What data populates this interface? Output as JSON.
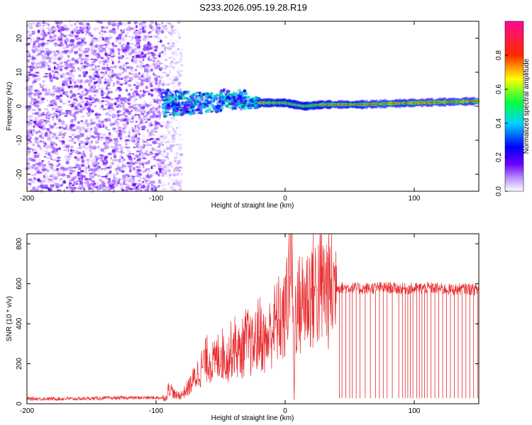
{
  "title": "S233.2026.095.19.28.R19",
  "colors": {
    "snr_line": "#e8292b",
    "scatter_primary": "#7a1fff",
    "axis": "#000000"
  },
  "chart_data": [
    {
      "type": "heatmap",
      "name": "spectrogram",
      "xlabel": "Height of straight line (km)",
      "ylabel": "Frequency (Hz)",
      "xlim": [
        -200,
        150
      ],
      "ylim": [
        -25,
        25
      ],
      "x_ticks": [
        -200,
        -100,
        0,
        100
      ],
      "y_ticks": [
        -20,
        -10,
        0,
        10,
        20
      ],
      "colorbar": {
        "label": "Normalized spectral amplitude",
        "range": [
          0.0,
          1.0
        ],
        "ticks": [
          0.0,
          0.2,
          0.4,
          0.6,
          0.8
        ],
        "tick_labels": [
          "0.0",
          "0.2",
          "0.4",
          "0.6",
          "0.8"
        ],
        "colormap": [
          "#ffffff",
          "#6a00ff",
          "#0000ff",
          "#00d4ff",
          "#00ff00",
          "#ffff00",
          "#ff0000",
          "#ff00a0"
        ]
      },
      "regions": [
        {
          "x_range": [
            -200,
            -95
          ],
          "freq_range": [
            -25,
            25
          ],
          "description": "noise",
          "amplitude": 0.1
        },
        {
          "x_range": [
            -95,
            -80
          ],
          "freq_range": [
            -25,
            25
          ],
          "description": "sparse noise",
          "amplitude": 0.05
        },
        {
          "x_range": [
            -95,
            -20
          ],
          "freq_range": [
            -4,
            6
          ],
          "description": "signal onset",
          "amplitude": 0.35
        },
        {
          "x_range": [
            -20,
            150
          ],
          "freq_range": [
            -1,
            2
          ],
          "description": "carrier line",
          "amplitude": 0.7
        }
      ],
      "carrier_line": {
        "x": [
          -20,
          0,
          15,
          30,
          60,
          100,
          150
        ],
        "freq": [
          1,
          1,
          0,
          0.5,
          0.5,
          1,
          1.5
        ]
      }
    },
    {
      "type": "line",
      "name": "snr",
      "xlabel": "Height of straight line (km)",
      "ylabel": "SNR (10 * v/v)",
      "xlim": [
        -200,
        150
      ],
      "ylim": [
        0,
        850
      ],
      "x_ticks": [
        -200,
        -100,
        0,
        100
      ],
      "y_ticks": [
        0,
        200,
        400,
        600,
        800
      ],
      "series": [
        {
          "name": "SNR",
          "x": [
            -200,
            -180,
            -160,
            -140,
            -120,
            -100,
            -92,
            -90,
            -85,
            -80,
            -75,
            -70,
            -65,
            -60,
            -55,
            -50,
            -45,
            -40,
            -35,
            -30,
            -25,
            -20,
            -15,
            -10,
            -5,
            0,
            5,
            7,
            8,
            10,
            15,
            20,
            25,
            30,
            35,
            40,
            45,
            50,
            60,
            70,
            80,
            90,
            100,
            110,
            120,
            130,
            140,
            150
          ],
          "values": [
            25,
            25,
            25,
            28,
            30,
            30,
            30,
            85,
            40,
            45,
            80,
            130,
            180,
            230,
            200,
            260,
            220,
            300,
            250,
            320,
            280,
            360,
            300,
            380,
            420,
            420,
            850,
            30,
            500,
            480,
            520,
            560,
            570,
            580,
            580,
            585,
            580,
            580,
            575,
            580,
            580,
            575,
            575,
            580,
            575,
            570,
            575,
            570
          ]
        }
      ],
      "dropouts_x": [
        42,
        44,
        47,
        50,
        52,
        55,
        58,
        62,
        66,
        70,
        73,
        76,
        79,
        83,
        88,
        91,
        93,
        95,
        97,
        99,
        102,
        104,
        106,
        108,
        110,
        113,
        116,
        119,
        122,
        125,
        128,
        131,
        134,
        137,
        140,
        143,
        146,
        149
      ]
    }
  ]
}
